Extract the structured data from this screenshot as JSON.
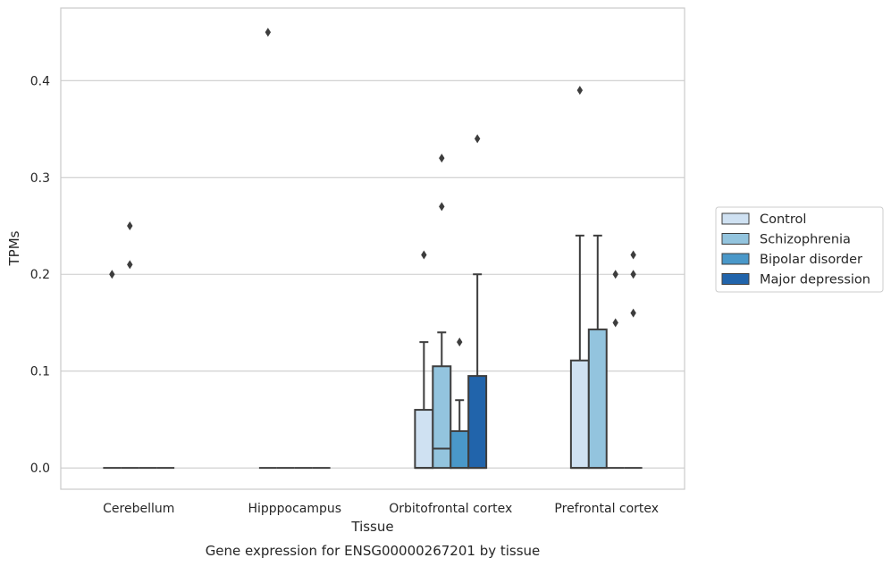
{
  "caption": "Gene expression for ENSG00000267201 by tissue",
  "chart_data": {
    "type": "box",
    "title": "",
    "xlabel": "Tissue",
    "ylabel": "TPMs",
    "ylim": [
      -0.022,
      0.475
    ],
    "yticks": [
      0.0,
      0.1,
      0.2,
      0.3,
      0.4
    ],
    "ytick_labels": [
      "0.0",
      "0.1",
      "0.2",
      "0.3",
      "0.4"
    ],
    "grid": "horizontal",
    "legend_position": "right",
    "categories": [
      "Cerebellum",
      "Hipppocampus",
      "Orbitofrontal cortex",
      "Prefrontal cortex"
    ],
    "series": [
      {
        "name": "Control",
        "color": "#cfe1f2",
        "boxes": [
          {
            "q1": 0,
            "median": 0,
            "q3": 0,
            "whisker_low": 0,
            "whisker_high": 0,
            "outliers": [
              0.2
            ]
          },
          {
            "q1": 0,
            "median": 0,
            "q3": 0,
            "whisker_low": 0,
            "whisker_high": 0,
            "outliers": [
              0.45
            ]
          },
          {
            "q1": 0,
            "median": 0,
            "q3": 0.06,
            "whisker_low": 0,
            "whisker_high": 0.13,
            "outliers": [
              0.22
            ]
          },
          {
            "q1": 0,
            "median": 0,
            "q3": 0.111,
            "whisker_low": 0,
            "whisker_high": 0.24,
            "outliers": [
              0.39
            ]
          }
        ]
      },
      {
        "name": "Schizophrenia",
        "color": "#93c4de",
        "boxes": [
          {
            "q1": 0,
            "median": 0,
            "q3": 0,
            "whisker_low": 0,
            "whisker_high": 0,
            "outliers": [
              0.21,
              0.25
            ]
          },
          {
            "q1": 0,
            "median": 0,
            "q3": 0,
            "whisker_low": 0,
            "whisker_high": 0,
            "outliers": []
          },
          {
            "q1": 0,
            "median": 0.02,
            "q3": 0.105,
            "whisker_low": 0,
            "whisker_high": 0.14,
            "outliers": [
              0.27,
              0.32
            ]
          },
          {
            "q1": 0,
            "median": 0,
            "q3": 0.143,
            "whisker_low": 0,
            "whisker_high": 0.24,
            "outliers": []
          }
        ]
      },
      {
        "name": "Bipolar disorder",
        "color": "#4a98c9",
        "boxes": [
          {
            "q1": 0,
            "median": 0,
            "q3": 0,
            "whisker_low": 0,
            "whisker_high": 0,
            "outliers": []
          },
          {
            "q1": 0,
            "median": 0,
            "q3": 0,
            "whisker_low": 0,
            "whisker_high": 0,
            "outliers": []
          },
          {
            "q1": 0,
            "median": 0,
            "q3": 0.038,
            "whisker_low": 0,
            "whisker_high": 0.07,
            "outliers": [
              0.13
            ]
          },
          {
            "q1": 0,
            "median": 0,
            "q3": 0,
            "whisker_low": 0,
            "whisker_high": 0,
            "outliers": [
              0.15,
              0.2
            ]
          }
        ]
      },
      {
        "name": "Major depression",
        "color": "#2164ab",
        "boxes": [
          {
            "q1": 0,
            "median": 0,
            "q3": 0,
            "whisker_low": 0,
            "whisker_high": 0,
            "outliers": []
          },
          {
            "q1": 0,
            "median": 0,
            "q3": 0,
            "whisker_low": 0,
            "whisker_high": 0,
            "outliers": []
          },
          {
            "q1": 0,
            "median": 0,
            "q3": 0.095,
            "whisker_low": 0,
            "whisker_high": 0.2,
            "outliers": [
              0.34
            ]
          },
          {
            "q1": 0,
            "median": 0,
            "q3": 0,
            "whisker_low": 0,
            "whisker_high": 0,
            "outliers": [
              0.16,
              0.2,
              0.22
            ]
          }
        ]
      }
    ]
  }
}
